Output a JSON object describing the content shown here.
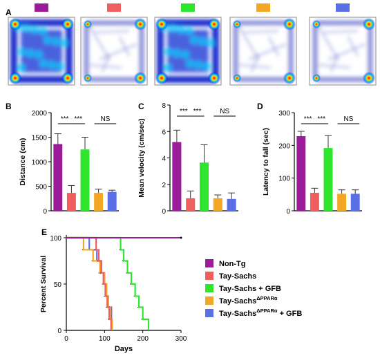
{
  "group_colors": [
    "#9b1b9b",
    "#ef5f5f",
    "#2ee62e",
    "#f5a623",
    "#5a6fe6"
  ],
  "panel_labels": {
    "a": "A",
    "b": "B",
    "c": "C",
    "d": "D",
    "e": "E"
  },
  "heatmaps": {
    "patterns": [
      "dense",
      "sparse",
      "dense",
      "sparse",
      "sparse-edge"
    ]
  },
  "chart_data": [
    {
      "type": "bar",
      "ylabel": "Distance (cm)",
      "ylim": [
        0,
        2000
      ],
      "yticks": [
        "0",
        "500",
        "1000",
        "1500",
        "2000"
      ],
      "values": [
        1360,
        365,
        1250,
        365,
        385
      ],
      "errors": [
        210,
        150,
        250,
        75,
        35
      ],
      "significance": [
        "***",
        "***",
        "NS"
      ]
    },
    {
      "type": "bar",
      "ylabel": "Mean velocity (cm/sec)",
      "ylim": [
        0,
        8
      ],
      "yticks": [
        "0",
        "2",
        "4",
        "6",
        "8"
      ],
      "values": [
        5.2,
        0.95,
        3.65,
        0.95,
        0.9
      ],
      "errors": [
        0.9,
        0.55,
        1.35,
        0.25,
        0.45
      ],
      "significance": [
        "***",
        "***",
        "NS"
      ]
    },
    {
      "type": "bar",
      "ylabel": "Latency to fall (sec)",
      "ylim": [
        0,
        300
      ],
      "yticks": [
        "0",
        "100",
        "200",
        "300"
      ],
      "values": [
        228,
        55,
        192,
        52,
        52
      ],
      "errors": [
        15,
        14,
        38,
        12,
        12
      ],
      "significance": [
        "***",
        "***",
        "NS"
      ]
    },
    {
      "type": "line",
      "xlabel": "Days",
      "ylabel": "Percent Survival",
      "xlim": [
        0,
        300
      ],
      "ylim": [
        0,
        100
      ],
      "xticks": [
        "0",
        "100",
        "200",
        "300"
      ],
      "yticks": [
        "0",
        "50",
        "100"
      ],
      "series": [
        {
          "name": "Non-Tg",
          "x": [
            0,
            300
          ],
          "y": [
            100,
            100
          ]
        },
        {
          "name": "Tay-Sachs",
          "x": [
            0,
            78,
            85,
            92,
            97,
            102,
            107,
            112,
            117
          ],
          "y": [
            100,
            87,
            75,
            62,
            50,
            37,
            25,
            12,
            0
          ]
        },
        {
          "name": "Tay-Sachs + GFB",
          "x": [
            0,
            142,
            150,
            160,
            170,
            180,
            190,
            200,
            215
          ],
          "y": [
            100,
            87,
            75,
            62,
            50,
            37,
            25,
            12,
            0
          ]
        },
        {
          "name": "Tay-Sachs ΔPPARα",
          "x": [
            0,
            45,
            70,
            88,
            100,
            105,
            110,
            115,
            120
          ],
          "y": [
            100,
            87,
            75,
            62,
            50,
            37,
            25,
            12,
            0
          ]
        },
        {
          "name": "Tay-Sachs ΔPPARα + GFB",
          "x": [
            0,
            60,
            80,
            90,
            100,
            105,
            110,
            118,
            120
          ],
          "y": [
            100,
            87,
            75,
            62,
            50,
            37,
            25,
            12,
            0
          ]
        }
      ],
      "legend": {
        "labels": [
          "Non-Tg",
          "Tay-Sachs",
          "Tay-Sachs + GFB",
          "Tay-Sachs",
          "Tay-Sachs"
        ],
        "superscripts": [
          "",
          "",
          "",
          "ΔPPARα",
          "ΔPPARα"
        ],
        "suffixes": [
          "",
          "",
          "",
          "",
          " + GFB"
        ]
      }
    }
  ]
}
